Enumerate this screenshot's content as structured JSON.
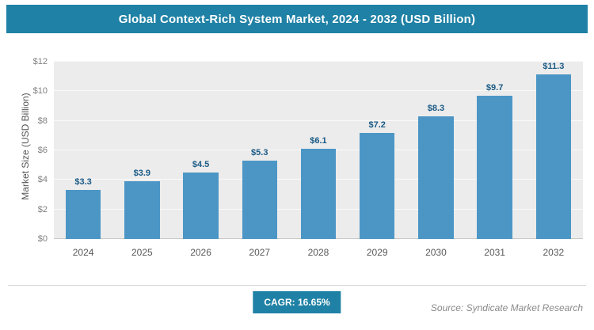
{
  "header": {
    "title": "Global Context-Rich System Market, 2024 - 2032 (USD Billion)"
  },
  "chart_data": {
    "type": "bar",
    "title": "Global Context-Rich System Market, 2024 - 2032 (USD Billion)",
    "categories": [
      "2024",
      "2025",
      "2026",
      "2027",
      "2028",
      "2029",
      "2030",
      "2031",
      "2032"
    ],
    "values": [
      3.3,
      3.9,
      4.5,
      5.3,
      6.1,
      7.2,
      8.3,
      9.7,
      11.3
    ],
    "value_labels": [
      "$3.3",
      "$3.9",
      "$4.5",
      "$5.3",
      "$6.1",
      "$7.2",
      "$8.3",
      "$9.7",
      "$11.3"
    ],
    "xlabel": "",
    "ylabel": "Market Size (USD Billion)",
    "ylim": [
      0,
      12
    ],
    "ytick_step": 2,
    "yticks": [
      "$0",
      "$2",
      "$4",
      "$6",
      "$8",
      "$10",
      "$12"
    ],
    "grid": true,
    "legend": "none",
    "plot_background": "#ececec",
    "bar_color": "#4c96c6",
    "value_label_color": "#1a5a85"
  },
  "footer": {
    "cagr_label": "CAGR: 16.65%",
    "source": "Source: Syndicate Market Research"
  },
  "colors": {
    "accent": "#1f81a5",
    "bar": "#4c96c6",
    "plot_bg": "#ececec"
  }
}
